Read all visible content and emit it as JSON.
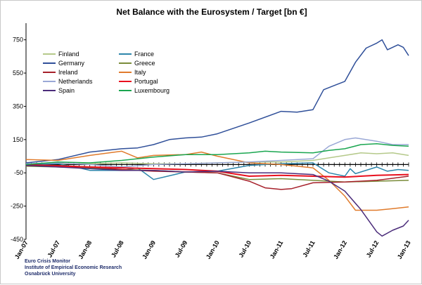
{
  "chart_data": {
    "type": "line",
    "title": "Net Balance with the Eurosystem / Target [bn €]",
    "xlabel": "",
    "ylabel": "",
    "ylim": [
      -450,
      850
    ],
    "y_ticks": [
      -450,
      -250,
      -50,
      150,
      350,
      550,
      750
    ],
    "grid": false,
    "legend_position": "top-left",
    "x_start": "Jan-07",
    "x_end": "Jan-13",
    "x_tick_labels": [
      "Jan-07",
      "Jul-07",
      "Jan-08",
      "Jul-08",
      "Jan-09",
      "Jul-09",
      "Jan-10",
      "Jul-10",
      "Jan-11",
      "Jul-11",
      "Jan-12",
      "Jul-12",
      "Jan-13"
    ],
    "zero_line": 0,
    "series": [
      {
        "name": "Finland",
        "color": "#b5c98a",
        "points": [
          [
            "Jan-07",
            5
          ],
          [
            "Jul-07",
            5
          ],
          [
            "Jan-08",
            5
          ],
          [
            "Jul-08",
            10
          ],
          [
            "Jan-09",
            5
          ],
          [
            "Jul-09",
            5
          ],
          [
            "Jan-10",
            10
          ],
          [
            "Jul-10",
            15
          ],
          [
            "Jan-11",
            15
          ],
          [
            "Jul-11",
            25
          ],
          [
            "Oct-11",
            40
          ],
          [
            "Jan-12",
            55
          ],
          [
            "Apr-12",
            70
          ],
          [
            "Jul-12",
            65
          ],
          [
            "Oct-12",
            70
          ],
          [
            "Jan-13",
            55
          ]
        ]
      },
      {
        "name": "France",
        "color": "#2e86ab",
        "points": [
          [
            "Jan-07",
            0
          ],
          [
            "Jul-07",
            5
          ],
          [
            "Nov-07",
            -20
          ],
          [
            "Jan-08",
            -35
          ],
          [
            "Jul-08",
            -35
          ],
          [
            "Oct-08",
            -20
          ],
          [
            "Jan-09",
            -90
          ],
          [
            "Jul-09",
            -45
          ],
          [
            "Jan-10",
            -40
          ],
          [
            "Jul-10",
            -5
          ],
          [
            "Jan-11",
            5
          ],
          [
            "Jul-11",
            10
          ],
          [
            "Oct-11",
            -50
          ],
          [
            "Jan-12",
            -70
          ],
          [
            "Feb-12",
            -25
          ],
          [
            "Mar-12",
            -55
          ],
          [
            "Jul-12",
            -15
          ],
          [
            "Sep-12",
            -40
          ],
          [
            "Nov-12",
            -30
          ],
          [
            "Jan-13",
            -35
          ]
        ]
      },
      {
        "name": "Germany",
        "color": "#2f4f99",
        "points": [
          [
            "Jan-07",
            10
          ],
          [
            "Jul-07",
            30
          ],
          [
            "Jan-08",
            75
          ],
          [
            "Jul-08",
            95
          ],
          [
            "Oct-08",
            100
          ],
          [
            "Jan-09",
            120
          ],
          [
            "Apr-09",
            150
          ],
          [
            "Jul-09",
            160
          ],
          [
            "Oct-09",
            165
          ],
          [
            "Jan-10",
            185
          ],
          [
            "Jul-10",
            250
          ],
          [
            "Jan-11",
            320
          ],
          [
            "Apr-11",
            315
          ],
          [
            "Jul-11",
            330
          ],
          [
            "Sep-11",
            450
          ],
          [
            "Nov-11",
            475
          ],
          [
            "Jan-12",
            500
          ],
          [
            "Mar-12",
            615
          ],
          [
            "May-12",
            700
          ],
          [
            "Jul-12",
            730
          ],
          [
            "Aug-12",
            750
          ],
          [
            "Sep-12",
            690
          ],
          [
            "Nov-12",
            720
          ],
          [
            "Dec-12",
            705
          ],
          [
            "Jan-13",
            655
          ]
        ]
      },
      {
        "name": "Greece",
        "color": "#7a8c3a",
        "points": [
          [
            "Jan-07",
            -10
          ],
          [
            "Jul-07",
            -15
          ],
          [
            "Jan-08",
            -20
          ],
          [
            "Jul-08",
            -30
          ],
          [
            "Jan-09",
            -35
          ],
          [
            "Jul-09",
            -45
          ],
          [
            "Jan-10",
            -50
          ],
          [
            "Jul-10",
            -90
          ],
          [
            "Jan-11",
            -85
          ],
          [
            "Jul-11",
            -95
          ],
          [
            "Jan-12",
            -105
          ],
          [
            "Jul-12",
            -100
          ],
          [
            "Jan-13",
            -95
          ]
        ]
      },
      {
        "name": "Ireland",
        "color": "#a6202a",
        "points": [
          [
            "Jan-07",
            0
          ],
          [
            "Jul-07",
            -5
          ],
          [
            "Jan-08",
            -15
          ],
          [
            "Jul-08",
            -30
          ],
          [
            "Jan-09",
            -40
          ],
          [
            "Jul-09",
            -45
          ],
          [
            "Jan-10",
            -50
          ],
          [
            "Jul-10",
            -100
          ],
          [
            "Oct-10",
            -140
          ],
          [
            "Jan-11",
            -150
          ],
          [
            "Mar-11",
            -145
          ],
          [
            "Jul-11",
            -110
          ],
          [
            "Jan-12",
            -105
          ],
          [
            "Jul-12",
            -95
          ],
          [
            "Jan-13",
            -70
          ]
        ]
      },
      {
        "name": "Italy",
        "color": "#e07b2c",
        "points": [
          [
            "Jan-07",
            30
          ],
          [
            "Jul-07",
            25
          ],
          [
            "Jan-08",
            55
          ],
          [
            "Jul-08",
            80
          ],
          [
            "Oct-08",
            40
          ],
          [
            "Jan-09",
            55
          ],
          [
            "Jul-09",
            60
          ],
          [
            "Oct-09",
            75
          ],
          [
            "Jan-10",
            50
          ],
          [
            "Jul-10",
            10
          ],
          [
            "Jan-11",
            0
          ],
          [
            "Jul-11",
            -20
          ],
          [
            "Oct-11",
            -95
          ],
          [
            "Jan-12",
            -190
          ],
          [
            "Mar-12",
            -275
          ],
          [
            "Jul-12",
            -275
          ],
          [
            "Oct-12",
            -265
          ],
          [
            "Jan-13",
            -255
          ]
        ]
      },
      {
        "name": "Netherlands",
        "color": "#9aa8d6",
        "points": [
          [
            "Jan-07",
            5
          ],
          [
            "Jul-07",
            10
          ],
          [
            "Jan-08",
            0
          ],
          [
            "Jul-08",
            -15
          ],
          [
            "Jan-09",
            0
          ],
          [
            "Jul-09",
            5
          ],
          [
            "Jan-10",
            10
          ],
          [
            "Jul-10",
            15
          ],
          [
            "Jan-11",
            25
          ],
          [
            "Jul-11",
            35
          ],
          [
            "Oct-11",
            110
          ],
          [
            "Jan-12",
            150
          ],
          [
            "Mar-12",
            160
          ],
          [
            "Jul-12",
            140
          ],
          [
            "Oct-12",
            120
          ],
          [
            "Jan-13",
            120
          ]
        ]
      },
      {
        "name": "Portugal",
        "color": "#e8101e",
        "points": [
          [
            "Jan-07",
            -5
          ],
          [
            "Jul-07",
            -10
          ],
          [
            "Jan-08",
            -15
          ],
          [
            "Jul-08",
            -20
          ],
          [
            "Jan-09",
            -25
          ],
          [
            "Jul-09",
            -30
          ],
          [
            "Jan-10",
            -40
          ],
          [
            "Jul-10",
            -70
          ],
          [
            "Jan-11",
            -65
          ],
          [
            "Jul-11",
            -70
          ],
          [
            "Jan-12",
            -75
          ],
          [
            "Jul-12",
            -65
          ],
          [
            "Jan-13",
            -60
          ]
        ]
      },
      {
        "name": "Spain",
        "color": "#4b2c7a",
        "points": [
          [
            "Jan-07",
            -5
          ],
          [
            "Jul-07",
            -15
          ],
          [
            "Jan-08",
            -25
          ],
          [
            "Jul-08",
            -35
          ],
          [
            "Jan-09",
            -35
          ],
          [
            "Jul-09",
            -45
          ],
          [
            "Jan-10",
            -40
          ],
          [
            "Jul-10",
            -50
          ],
          [
            "Jan-11",
            -50
          ],
          [
            "Jul-11",
            -60
          ],
          [
            "Oct-11",
            -100
          ],
          [
            "Jan-12",
            -160
          ],
          [
            "Apr-12",
            -270
          ],
          [
            "Jul-12",
            -405
          ],
          [
            "Aug-12",
            -430
          ],
          [
            "Oct-12",
            -395
          ],
          [
            "Dec-12",
            -370
          ],
          [
            "Jan-13",
            -335
          ]
        ]
      },
      {
        "name": "Luxembourg",
        "color": "#1aa650",
        "points": [
          [
            "Jan-07",
            0
          ],
          [
            "Jul-07",
            15
          ],
          [
            "Jan-08",
            10
          ],
          [
            "Jul-08",
            25
          ],
          [
            "Jan-09",
            45
          ],
          [
            "Jul-09",
            60
          ],
          [
            "Jan-10",
            60
          ],
          [
            "Jul-10",
            70
          ],
          [
            "Oct-10",
            80
          ],
          [
            "Jan-11",
            75
          ],
          [
            "Jul-11",
            70
          ],
          [
            "Oct-11",
            85
          ],
          [
            "Jan-12",
            95
          ],
          [
            "Apr-12",
            120
          ],
          [
            "Jul-12",
            125
          ],
          [
            "Oct-12",
            115
          ],
          [
            "Jan-13",
            110
          ]
        ]
      }
    ]
  },
  "source": {
    "line1": "Euro Crisis Monitor",
    "line2": "Institute of Empirical Economic Research",
    "line3": "Osnabrück University"
  }
}
